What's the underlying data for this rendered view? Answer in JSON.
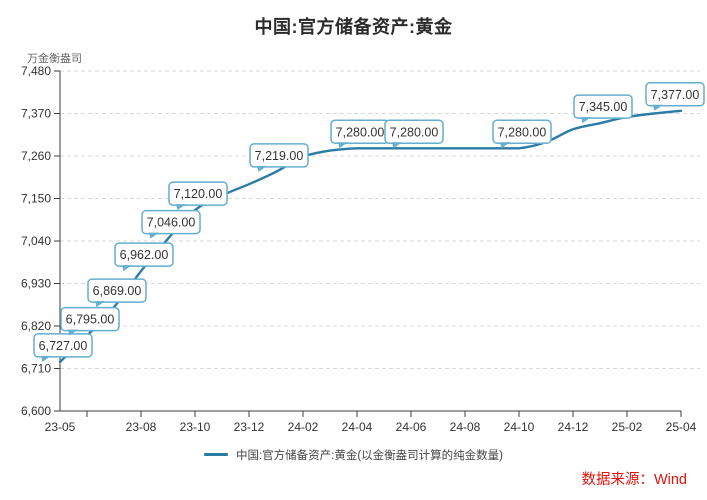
{
  "header": {
    "title": "中国:官方储备资产:黄金",
    "unit_label": "万金衡盎司"
  },
  "legend": {
    "label": "中国:官方储备资产:黄金(以金衡盎司计算的纯金数量)"
  },
  "source": {
    "label": "数据来源：Wind",
    "color": "#e3120b"
  },
  "colors": {
    "line": "#2a7ba6",
    "callout_border": "#64aecf",
    "callout_fill": "#ffffff",
    "callout_text": "#333333",
    "grid": "#d9d9d9",
    "axis": "#3c3c3c",
    "text": "#333333"
  },
  "chart_data": {
    "type": "line",
    "title": "中国:官方储备资产:黄金",
    "ylabel": "万金衡盎司",
    "xlabel": "",
    "grid": "horizontal-dashed",
    "legend_position": "bottom",
    "ylim": [
      6600,
      7480
    ],
    "x": [
      "23-05",
      "23-06",
      "23-07",
      "23-08",
      "23-09",
      "23-10",
      "23-11",
      "23-12",
      "24-01",
      "24-02",
      "24-03",
      "24-04",
      "24-05",
      "24-06",
      "24-07",
      "24-08",
      "24-09",
      "24-10",
      "24-11",
      "24-12",
      "25-01",
      "25-02",
      "25-03",
      "25-04"
    ],
    "values": [
      6727,
      6795,
      6869,
      6962,
      7046,
      7120,
      7158,
      7187,
      7219,
      7258,
      7274,
      7280,
      7280,
      7280,
      7280,
      7280,
      7280,
      7280,
      7296,
      7329,
      7345,
      7361,
      7370,
      7377
    ],
    "y_ticks": [
      {
        "value": 6600,
        "label": "6,600"
      },
      {
        "value": 6710,
        "label": "6,710"
      },
      {
        "value": 6820,
        "label": "6,820"
      },
      {
        "value": 6930,
        "label": "6,930"
      },
      {
        "value": 7040,
        "label": "7,040"
      },
      {
        "value": 7150,
        "label": "7,150"
      },
      {
        "value": 7260,
        "label": "7,260"
      },
      {
        "value": 7370,
        "label": "7,370"
      },
      {
        "value": 7480,
        "label": "7,480"
      }
    ],
    "x_ticks": [
      {
        "index": 0,
        "label": "23-05"
      },
      {
        "index": 3,
        "label": "23-08"
      },
      {
        "index": 5,
        "label": "23-10"
      },
      {
        "index": 7,
        "label": "23-12"
      },
      {
        "index": 9,
        "label": "24-02"
      },
      {
        "index": 11,
        "label": "24-04"
      },
      {
        "index": 13,
        "label": "24-06"
      },
      {
        "index": 15,
        "label": "24-08"
      },
      {
        "index": 17,
        "label": "24-10"
      },
      {
        "index": 19,
        "label": "24-12"
      },
      {
        "index": 21,
        "label": "25-02"
      },
      {
        "index": 23,
        "label": "25-04"
      }
    ],
    "labeled_points": [
      {
        "index": 0,
        "label": "6,727.00"
      },
      {
        "index": 1,
        "label": "6,795.00"
      },
      {
        "index": 2,
        "label": "6,869.00"
      },
      {
        "index": 3,
        "label": "6,962.00"
      },
      {
        "index": 4,
        "label": "7,046.00"
      },
      {
        "index": 5,
        "label": "7,120.00"
      },
      {
        "index": 8,
        "label": "7,219.00"
      },
      {
        "index": 11,
        "label": "7,280.00"
      },
      {
        "index": 13,
        "label": "7,280.00"
      },
      {
        "index": 17,
        "label": "7,280.00"
      },
      {
        "index": 20,
        "label": "7,345.00"
      },
      {
        "index": 23,
        "label": "7,377.00"
      }
    ]
  }
}
